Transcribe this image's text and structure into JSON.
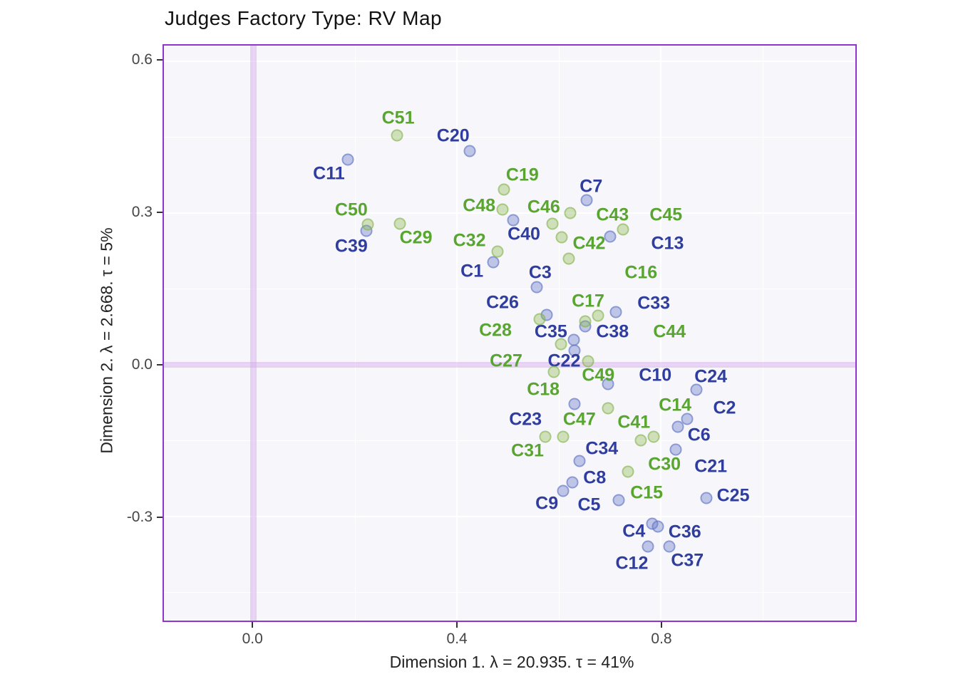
{
  "title": "Judges Factory Type: RV Map",
  "axes": {
    "x": {
      "title": "Dimension 1.   λ = 20.935.  τ = 41%",
      "range": [
        -0.176,
        1.182
      ],
      "major_ticks": [
        0.0,
        0.4,
        0.8
      ],
      "tick_labels": [
        "0.0",
        "0.4",
        "0.8"
      ],
      "minor_gridlines": [
        0.2,
        0.6,
        1.0
      ],
      "zero_line": 0.0
    },
    "y": {
      "title": "Dimension 2.   λ = 2.668.  τ = 5%",
      "range": [
        -0.506,
        0.631
      ],
      "major_ticks": [
        0.6,
        0.3,
        0.0,
        -0.3
      ],
      "tick_labels": [
        "0.6",
        "0.3",
        "0.0",
        "-0.3"
      ],
      "minor_gridlines": [
        0.45,
        0.15,
        -0.15,
        -0.45
      ],
      "zero_line": 0.0
    }
  },
  "colors": {
    "panel_background": "#f7f6fb",
    "panel_border": "#9136cc",
    "grid": "#ffffff",
    "zero_band": "#cea7e9",
    "blue_label": "#2e3d9e",
    "green_label": "#58a52f"
  },
  "chart_data": {
    "type": "scatter",
    "title": "Judges Factory Type: RV Map",
    "xlabel": "Dimension 1.   λ = 20.935.  τ = 41%",
    "ylabel": "Dimension 2.   λ = 2.668.  τ = 5%",
    "xlim": [
      -0.176,
      1.182
    ],
    "ylim": [
      -0.506,
      0.631
    ],
    "grid": true,
    "legend": false,
    "series": [
      {
        "name": "group-blue",
        "points": [
          {
            "label": "C1",
            "x": 0.471,
            "y": 0.202,
            "lx": 0.429,
            "ly": 0.185
          },
          {
            "label": "C2",
            "x": 0.852,
            "y": -0.107,
            "lx": 0.925,
            "ly": -0.086
          },
          {
            "label": "C3",
            "x": 0.556,
            "y": 0.153,
            "lx": 0.563,
            "ly": 0.182
          },
          {
            "label": "C4",
            "x": 0.783,
            "y": -0.314,
            "lx": 0.747,
            "ly": -0.33
          },
          {
            "label": "C5",
            "x": 0.717,
            "y": -0.268,
            "lx": 0.659,
            "ly": -0.278
          },
          {
            "label": "C6",
            "x": 0.833,
            "y": -0.123,
            "lx": 0.875,
            "ly": -0.14
          },
          {
            "label": "C7",
            "x": 0.654,
            "y": 0.325,
            "lx": 0.663,
            "ly": 0.352
          },
          {
            "label": "C8",
            "x": 0.626,
            "y": -0.233,
            "lx": 0.67,
            "ly": -0.224
          },
          {
            "label": "C9",
            "x": 0.608,
            "y": -0.25,
            "lx": 0.576,
            "ly": -0.275
          },
          {
            "label": "C10",
            "x": 0.696,
            "y": -0.038,
            "lx": 0.789,
            "ly": -0.022
          },
          {
            "label": "C11",
            "x": 0.185,
            "y": 0.405,
            "lx": 0.148,
            "ly": 0.377
          },
          {
            "label": "C12",
            "x": 0.775,
            "y": -0.359,
            "lx": 0.743,
            "ly": -0.393
          },
          {
            "label": "C13",
            "x": 0.701,
            "y": 0.254,
            "lx": 0.813,
            "ly": 0.24
          },
          {
            "label": "C20",
            "x": 0.424,
            "y": 0.422,
            "lx": 0.392,
            "ly": 0.452
          },
          {
            "label": "C21",
            "x": 0.829,
            "y": -0.168,
            "lx": 0.898,
            "ly": -0.201
          },
          {
            "label": "C22",
            "x": 0.631,
            "y": 0.028,
            "lx": 0.61,
            "ly": 0.007
          },
          {
            "label": "C23",
            "x": 0.631,
            "y": -0.077,
            "lx": 0.534,
            "ly": -0.109
          },
          {
            "label": "C24",
            "x": 0.87,
            "y": -0.05,
            "lx": 0.898,
            "ly": -0.024
          },
          {
            "label": "C25",
            "x": 0.889,
            "y": -0.264,
            "lx": 0.942,
            "ly": -0.259
          },
          {
            "label": "C26",
            "x": 0.576,
            "y": 0.098,
            "lx": 0.489,
            "ly": 0.122
          },
          {
            "label": "C33",
            "x": 0.712,
            "y": 0.104,
            "lx": 0.786,
            "ly": 0.121
          },
          {
            "label": "C34",
            "x": 0.64,
            "y": -0.191,
            "lx": 0.684,
            "ly": -0.167
          },
          {
            "label": "C35",
            "x": 0.629,
            "y": 0.049,
            "lx": 0.584,
            "ly": 0.065
          },
          {
            "label": "C36",
            "x": 0.794,
            "y": -0.32,
            "lx": 0.847,
            "ly": -0.331
          },
          {
            "label": "C37",
            "x": 0.817,
            "y": -0.359,
            "lx": 0.852,
            "ly": -0.387
          },
          {
            "label": "C38",
            "x": 0.652,
            "y": 0.076,
            "lx": 0.705,
            "ly": 0.065
          },
          {
            "label": "C39",
            "x": 0.222,
            "y": 0.265,
            "lx": 0.192,
            "ly": 0.234
          },
          {
            "label": "C40",
            "x": 0.51,
            "y": 0.286,
            "lx": 0.531,
            "ly": 0.257
          }
        ]
      },
      {
        "name": "group-green",
        "points": [
          {
            "label": "C14",
            "x": 0.696,
            "y": -0.086,
            "lx": 0.828,
            "ly": -0.081
          },
          {
            "label": "C15",
            "x": 0.736,
            "y": -0.212,
            "lx": 0.772,
            "ly": -0.254
          },
          {
            "label": "C16",
            "x": 0.587,
            "y": 0.279,
            "lx": 0.761,
            "ly": 0.181
          },
          {
            "label": "C17",
            "x": 0.677,
            "y": 0.097,
            "lx": 0.657,
            "ly": 0.125
          },
          {
            "label": "C18",
            "x": 0.59,
            "y": -0.014,
            "lx": 0.569,
            "ly": -0.049
          },
          {
            "label": "C19",
            "x": 0.492,
            "y": 0.346,
            "lx": 0.528,
            "ly": 0.374
          },
          {
            "label": "C27",
            "x": 0.604,
            "y": 0.041,
            "lx": 0.496,
            "ly": 0.007
          },
          {
            "label": "C28",
            "x": 0.562,
            "y": 0.09,
            "lx": 0.475,
            "ly": 0.067
          },
          {
            "label": "C29",
            "x": 0.287,
            "y": 0.279,
            "lx": 0.319,
            "ly": 0.251
          },
          {
            "label": "C30",
            "x": 0.786,
            "y": -0.142,
            "lx": 0.807,
            "ly": -0.198
          },
          {
            "label": "C31",
            "x": 0.573,
            "y": -0.142,
            "lx": 0.538,
            "ly": -0.17
          },
          {
            "label": "C32",
            "x": 0.479,
            "y": 0.224,
            "lx": 0.424,
            "ly": 0.245
          },
          {
            "label": "C41",
            "x": 0.761,
            "y": -0.149,
            "lx": 0.747,
            "ly": -0.114
          },
          {
            "label": "C42",
            "x": 0.619,
            "y": 0.21,
            "lx": 0.659,
            "ly": 0.24
          },
          {
            "label": "C43",
            "x": 0.605,
            "y": 0.252,
            "lx": 0.705,
            "ly": 0.295
          },
          {
            "label": "C44",
            "x": 0.652,
            "y": 0.086,
            "lx": 0.817,
            "ly": 0.065
          },
          {
            "label": "C45",
            "x": 0.726,
            "y": 0.268,
            "lx": 0.81,
            "ly": 0.295
          },
          {
            "label": "C46",
            "x": 0.622,
            "y": 0.3,
            "lx": 0.57,
            "ly": 0.311
          },
          {
            "label": "C47",
            "x": 0.608,
            "y": -0.142,
            "lx": 0.64,
            "ly": -0.108
          },
          {
            "label": "C48",
            "x": 0.489,
            "y": 0.307,
            "lx": 0.443,
            "ly": 0.314
          },
          {
            "label": "C49",
            "x": 0.657,
            "y": 0.007,
            "lx": 0.677,
            "ly": -0.021
          },
          {
            "label": "C50",
            "x": 0.224,
            "y": 0.278,
            "lx": 0.192,
            "ly": 0.306
          },
          {
            "label": "C51",
            "x": 0.282,
            "y": 0.454,
            "lx": 0.284,
            "ly": 0.487
          }
        ]
      }
    ]
  }
}
